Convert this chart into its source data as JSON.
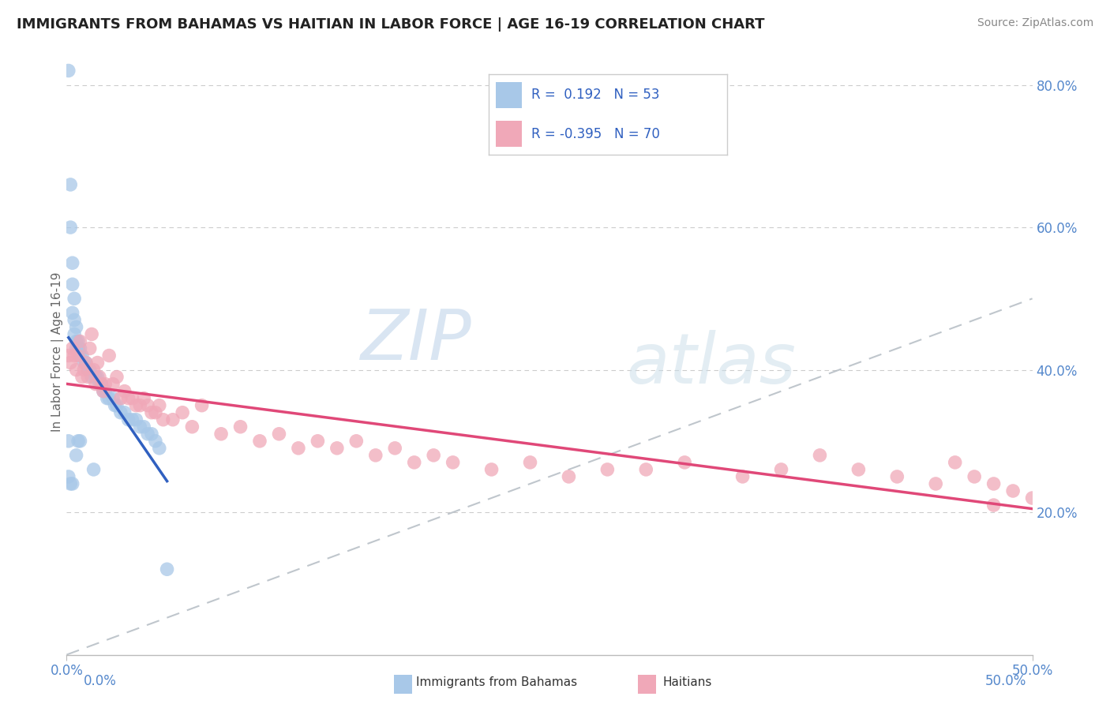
{
  "title": "IMMIGRANTS FROM BAHAMAS VS HAITIAN IN LABOR FORCE | AGE 16-19 CORRELATION CHART",
  "source": "Source: ZipAtlas.com",
  "ylabel": "In Labor Force | Age 16-19",
  "bahamas_color": "#a8c8e8",
  "haitian_color": "#f0a8b8",
  "trend_bahamas_color": "#3060c0",
  "trend_haitian_color": "#e04878",
  "diagonal_color": "#b0b8c0",
  "background_color": "#ffffff",
  "watermark_zip": "ZIP",
  "watermark_atlas": "atlas",
  "xlim": [
    0.0,
    0.5
  ],
  "ylim": [
    0.0,
    0.85
  ],
  "ytick_vals": [
    0.2,
    0.4,
    0.6,
    0.8
  ],
  "ytick_labels": [
    "20.0%",
    "40.0%",
    "60.0%",
    "80.0%"
  ],
  "bahamas_x": [
    0.001,
    0.001,
    0.001,
    0.002,
    0.002,
    0.002,
    0.003,
    0.003,
    0.003,
    0.003,
    0.004,
    0.004,
    0.004,
    0.005,
    0.005,
    0.005,
    0.005,
    0.006,
    0.006,
    0.006,
    0.007,
    0.007,
    0.007,
    0.008,
    0.009,
    0.01,
    0.011,
    0.012,
    0.013,
    0.014,
    0.015,
    0.016,
    0.017,
    0.018,
    0.019,
    0.02,
    0.021,
    0.022,
    0.024,
    0.025,
    0.026,
    0.028,
    0.03,
    0.032,
    0.034,
    0.036,
    0.038,
    0.04,
    0.042,
    0.044,
    0.046,
    0.048,
    0.052
  ],
  "bahamas_y": [
    0.82,
    0.3,
    0.25,
    0.66,
    0.6,
    0.24,
    0.55,
    0.52,
    0.48,
    0.24,
    0.5,
    0.47,
    0.45,
    0.46,
    0.44,
    0.43,
    0.28,
    0.44,
    0.43,
    0.3,
    0.43,
    0.42,
    0.3,
    0.42,
    0.41,
    0.41,
    0.4,
    0.4,
    0.39,
    0.26,
    0.39,
    0.39,
    0.38,
    0.38,
    0.37,
    0.37,
    0.36,
    0.36,
    0.36,
    0.35,
    0.35,
    0.34,
    0.34,
    0.33,
    0.33,
    0.33,
    0.32,
    0.32,
    0.31,
    0.31,
    0.3,
    0.29,
    0.12
  ],
  "haitian_x": [
    0.001,
    0.002,
    0.003,
    0.004,
    0.005,
    0.006,
    0.007,
    0.008,
    0.009,
    0.01,
    0.011,
    0.012,
    0.013,
    0.014,
    0.015,
    0.016,
    0.017,
    0.018,
    0.019,
    0.02,
    0.022,
    0.024,
    0.026,
    0.028,
    0.03,
    0.032,
    0.034,
    0.036,
    0.038,
    0.04,
    0.042,
    0.044,
    0.046,
    0.048,
    0.05,
    0.055,
    0.06,
    0.065,
    0.07,
    0.08,
    0.09,
    0.1,
    0.11,
    0.12,
    0.13,
    0.14,
    0.15,
    0.16,
    0.17,
    0.18,
    0.19,
    0.2,
    0.22,
    0.24,
    0.26,
    0.28,
    0.3,
    0.32,
    0.35,
    0.37,
    0.39,
    0.41,
    0.43,
    0.45,
    0.46,
    0.47,
    0.48,
    0.49,
    0.5,
    0.48
  ],
  "haitian_y": [
    0.42,
    0.41,
    0.43,
    0.42,
    0.4,
    0.42,
    0.44,
    0.39,
    0.4,
    0.41,
    0.39,
    0.43,
    0.45,
    0.4,
    0.38,
    0.41,
    0.39,
    0.38,
    0.37,
    0.38,
    0.42,
    0.38,
    0.39,
    0.36,
    0.37,
    0.36,
    0.36,
    0.35,
    0.35,
    0.36,
    0.35,
    0.34,
    0.34,
    0.35,
    0.33,
    0.33,
    0.34,
    0.32,
    0.35,
    0.31,
    0.32,
    0.3,
    0.31,
    0.29,
    0.3,
    0.29,
    0.3,
    0.28,
    0.29,
    0.27,
    0.28,
    0.27,
    0.26,
    0.27,
    0.25,
    0.26,
    0.26,
    0.27,
    0.25,
    0.26,
    0.28,
    0.26,
    0.25,
    0.24,
    0.27,
    0.25,
    0.24,
    0.23,
    0.22,
    0.21
  ]
}
